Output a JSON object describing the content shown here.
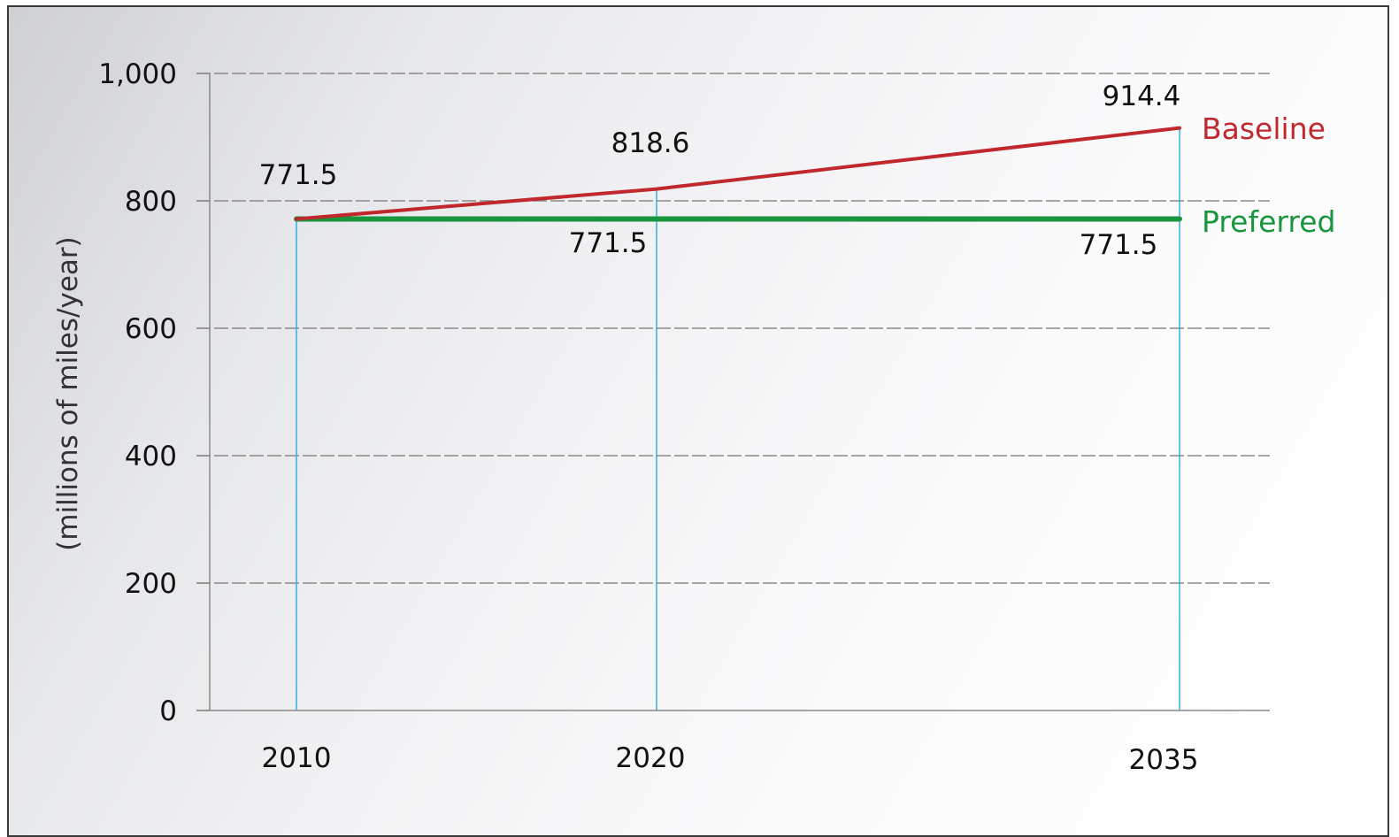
{
  "chart_data": {
    "type": "line",
    "title": "",
    "xlabel": "",
    "ylabel": "(millions of miles/year)",
    "x": [
      2010,
      2020,
      2035
    ],
    "xtick_labels": [
      "2010",
      "2020",
      "2035"
    ],
    "ylim": [
      0,
      1000
    ],
    "yticks": [
      0,
      200,
      400,
      600,
      800,
      1000
    ],
    "ytick_labels": [
      "0",
      "200",
      "400",
      "600",
      "800",
      "1,000"
    ],
    "grid": "horizontal dashed",
    "vertical_guides": "at each x value",
    "series": [
      {
        "name": "Baseline",
        "color": "#c0282d",
        "values": [
          771.5,
          818.6,
          914.4
        ],
        "labels": [
          "771.5",
          "818.6",
          "914.4"
        ]
      },
      {
        "name": "Preferred",
        "color": "#17963d",
        "values": [
          771.5,
          771.5,
          771.5
        ],
        "labels": [
          "",
          "771.5",
          "771.5"
        ]
      }
    ],
    "colors": {
      "guide_line": "#3aaee0",
      "grid_line": "#8a8a8a",
      "axis": "#8a8a8a"
    }
  }
}
